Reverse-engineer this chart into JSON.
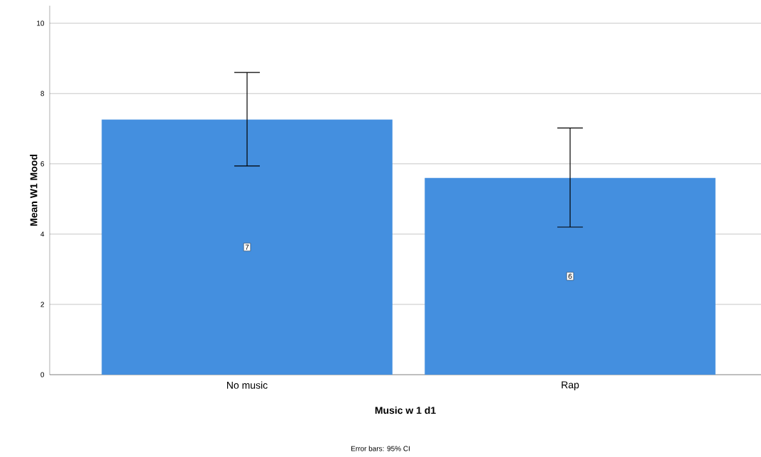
{
  "chart_data": {
    "type": "bar",
    "xlabel": "Music w 1 d1",
    "ylabel": "Mean W1 Mood",
    "categories": [
      "No music",
      "Rap"
    ],
    "values": [
      7.26,
      5.6
    ],
    "value_labels": [
      "7",
      "6"
    ],
    "errors": [
      [
        5.94,
        8.6
      ],
      [
        4.2,
        7.02
      ]
    ],
    "color": "#448fdf",
    "ylim": [
      0,
      10.5
    ],
    "yticks": [
      0,
      2,
      4,
      6,
      8,
      10
    ],
    "grid": "y",
    "annotations": [
      "Error bars: 95% CI"
    ]
  }
}
